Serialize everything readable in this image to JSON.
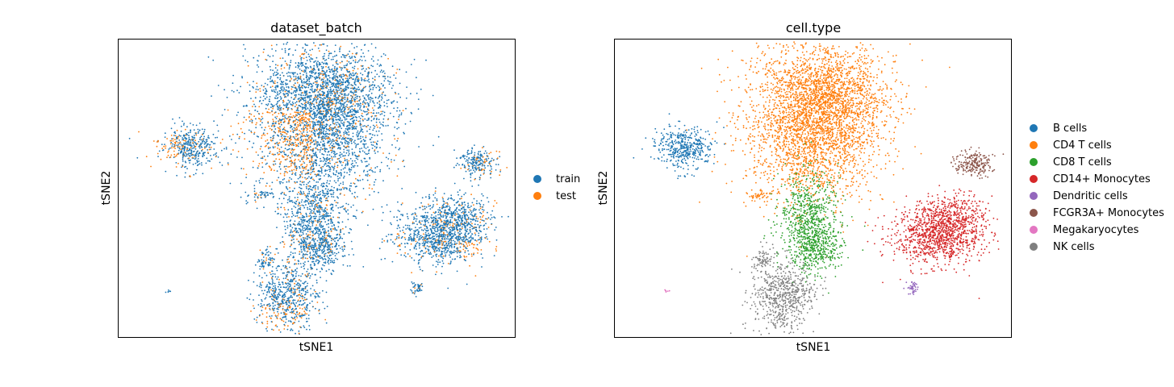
{
  "chart_data": [
    {
      "type": "scatter",
      "title": "dataset_batch",
      "xlabel": "tSNE1",
      "ylabel": "tSNE2",
      "grid": false,
      "ticks": false,
      "legend_position": "right",
      "series": [
        {
          "name": "train",
          "color": "#1f77b4"
        },
        {
          "name": "test",
          "color": "#ff7f0e"
        }
      ]
    },
    {
      "type": "scatter",
      "title": "cell.type",
      "xlabel": "tSNE1",
      "ylabel": "tSNE2",
      "grid": false,
      "ticks": false,
      "legend_position": "right",
      "series": [
        {
          "name": "B cells",
          "color": "#1f77b4"
        },
        {
          "name": "CD4 T cells",
          "color": "#ff7f0e"
        },
        {
          "name": "CD8 T cells",
          "color": "#2ca02c"
        },
        {
          "name": "CD14+ Monocytes",
          "color": "#d62728"
        },
        {
          "name": "Dendritic cells",
          "color": "#9467bd"
        },
        {
          "name": "FCGR3A+ Monocytes",
          "color": "#8c564b"
        },
        {
          "name": "Megakaryocytes",
          "color": "#e377c2"
        },
        {
          "name": "NK cells",
          "color": "#7f7f7f"
        }
      ]
    }
  ]
}
